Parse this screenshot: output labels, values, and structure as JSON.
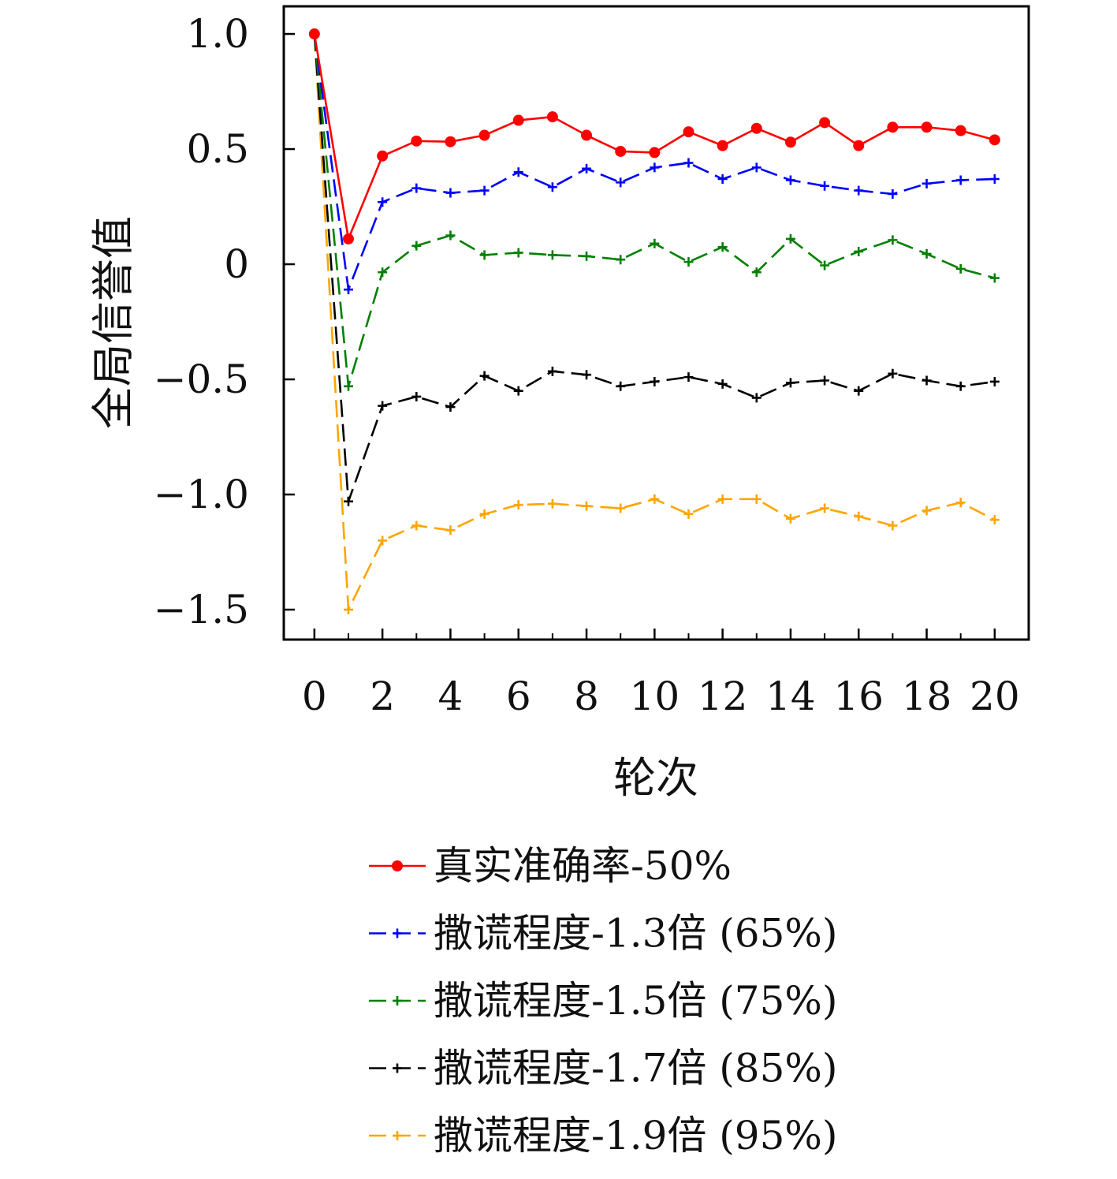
{
  "chart_data": {
    "type": "line",
    "xlabel": "轮次",
    "ylabel": "全局信誉值",
    "xlim": [
      -0.9,
      21
    ],
    "ylim": [
      -1.63,
      1.12
    ],
    "xticks": [
      "0",
      "2",
      "4",
      "6",
      "8",
      "10",
      "12",
      "14",
      "16",
      "18",
      "20"
    ],
    "yticks": [
      "1.0",
      "0.5",
      "0",
      "−0.5",
      "−1.0",
      "−1.5"
    ],
    "grid": false,
    "legend_position": "bottom",
    "x": [
      0,
      1,
      2,
      3,
      4,
      5,
      6,
      7,
      8,
      9,
      10,
      11,
      12,
      13,
      14,
      15,
      16,
      17,
      18,
      19,
      20
    ],
    "series": [
      {
        "name": "真实准确率-50%",
        "color": "#ff0000",
        "style": "solid",
        "marker": "dot",
        "values": [
          1.0,
          0.11,
          0.47,
          0.535,
          0.532,
          0.56,
          0.625,
          0.64,
          0.56,
          0.49,
          0.485,
          0.575,
          0.515,
          0.59,
          0.53,
          0.615,
          0.515,
          0.595,
          0.595,
          0.58,
          0.54
        ]
      },
      {
        "name": "撒谎程度-1.3倍 (65%)",
        "color": "#0000ff",
        "style": "dashed",
        "marker": "plus",
        "values": [
          1.0,
          -0.11,
          0.27,
          0.33,
          0.31,
          0.32,
          0.4,
          0.335,
          0.415,
          0.355,
          0.42,
          0.44,
          0.37,
          0.42,
          0.365,
          0.34,
          0.32,
          0.305,
          0.35,
          0.365,
          0.37
        ]
      },
      {
        "name": "撒谎程度-1.5倍 (75%)",
        "color": "#008000",
        "style": "dashed",
        "marker": "plus",
        "values": [
          1.0,
          -0.53,
          -0.035,
          0.08,
          0.125,
          0.04,
          0.05,
          0.04,
          0.035,
          0.02,
          0.09,
          0.01,
          0.075,
          -0.035,
          0.11,
          -0.005,
          0.055,
          0.105,
          0.045,
          -0.02,
          -0.06
        ]
      },
      {
        "name": "撒谎程度-1.7倍 (85%)",
        "color": "#000000",
        "style": "dashed",
        "marker": "plus",
        "values": [
          1.0,
          -1.03,
          -0.615,
          -0.575,
          -0.62,
          -0.485,
          -0.55,
          -0.465,
          -0.48,
          -0.53,
          -0.51,
          -0.49,
          -0.52,
          -0.58,
          -0.515,
          -0.505,
          -0.55,
          -0.475,
          -0.505,
          -0.53,
          -0.51
        ]
      },
      {
        "name": "撒谎程度-1.9倍 (95%)",
        "color": "#ffa500",
        "style": "dashed",
        "marker": "plus",
        "values": [
          1.0,
          -1.5,
          -1.2,
          -1.135,
          -1.155,
          -1.085,
          -1.045,
          -1.04,
          -1.05,
          -1.06,
          -1.02,
          -1.085,
          -1.02,
          -1.02,
          -1.105,
          -1.06,
          -1.095,
          -1.135,
          -1.07,
          -1.035,
          -1.11
        ]
      }
    ]
  }
}
